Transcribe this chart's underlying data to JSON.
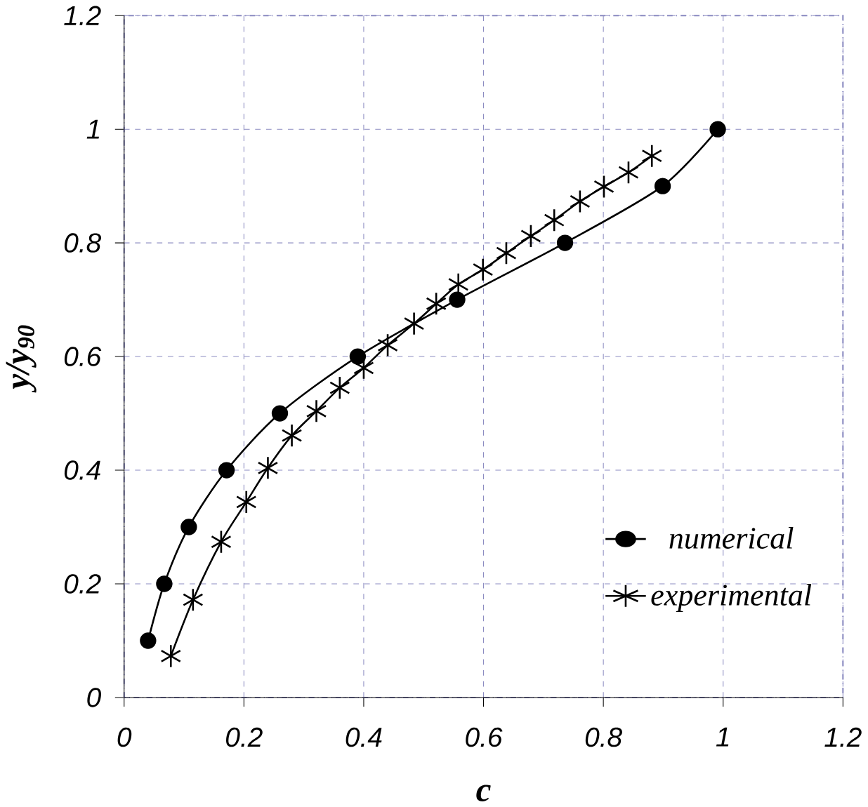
{
  "chart_data": {
    "type": "line",
    "xlabel": "c",
    "ylabel": "y/y$_{90}$",
    "xlim": [
      0,
      1.2
    ],
    "ylim": [
      0,
      1.2
    ],
    "xticks": [
      0,
      0.2,
      0.4,
      0.6,
      0.8,
      1,
      1.2
    ],
    "yticks": [
      0,
      0.2,
      0.4,
      0.6,
      0.8,
      1,
      1.2
    ],
    "grid": true,
    "legend": "bottom right",
    "series": [
      {
        "name": "numerical",
        "color": "#000000",
        "marker": "circle",
        "x": [
          0.04,
          0.067,
          0.108,
          0.171,
          0.26,
          0.39,
          0.556,
          0.736,
          0.899,
          0.991
        ],
        "values": [
          0.1,
          0.2,
          0.3,
          0.4,
          0.5,
          0.6,
          0.7,
          0.8,
          0.9,
          1.0
        ]
      },
      {
        "name": "experimental",
        "color": "#000000",
        "marker": "cross",
        "x": [
          0.078,
          0.115,
          0.162,
          0.204,
          0.24,
          0.28,
          0.321,
          0.36,
          0.4,
          0.44,
          0.484,
          0.521,
          0.558,
          0.599,
          0.638,
          0.679,
          0.718,
          0.761,
          0.801,
          0.842,
          0.881
        ],
        "values": [
          0.073,
          0.172,
          0.274,
          0.344,
          0.404,
          0.461,
          0.504,
          0.545,
          0.58,
          0.62,
          0.658,
          0.693,
          0.727,
          0.753,
          0.782,
          0.812,
          0.84,
          0.873,
          0.899,
          0.924,
          0.953
        ]
      }
    ]
  }
}
